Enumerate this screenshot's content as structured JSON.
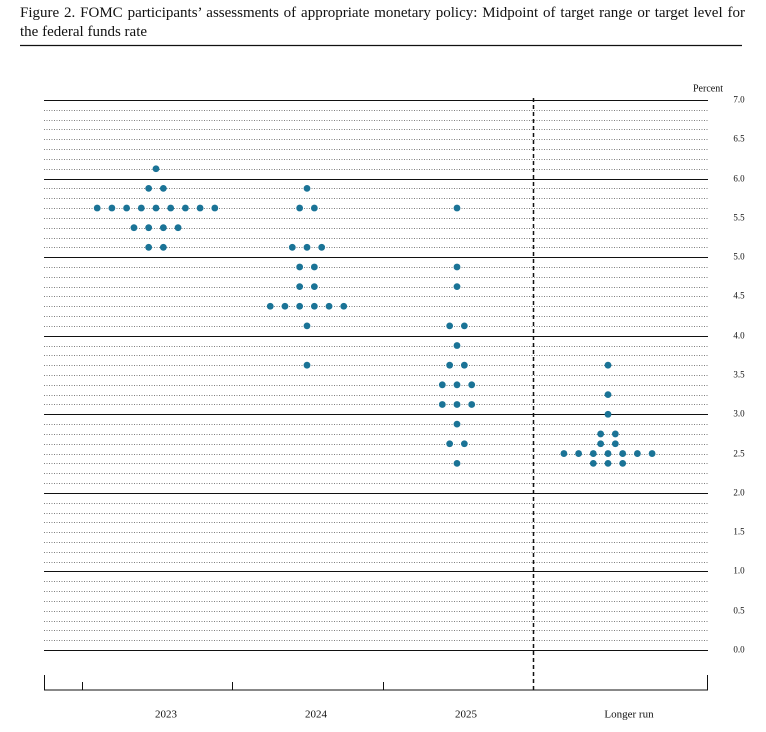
{
  "chart_data": {
    "type": "dot",
    "title": "Figure 2.  FOMC participants’ assessments of appropriate monetary policy: Midpoint of target range or target level for the federal funds rate",
    "y_label": "Percent",
    "categories": [
      "2023",
      "2024",
      "2025",
      "Longer run"
    ],
    "values": [
      [
        6.125,
        5.875,
        5.875,
        5.625,
        5.625,
        5.625,
        5.625,
        5.625,
        5.625,
        5.625,
        5.625,
        5.625,
        5.375,
        5.375,
        5.375,
        5.375,
        5.125,
        5.125
      ],
      [
        5.875,
        5.625,
        5.625,
        5.125,
        5.125,
        5.125,
        4.875,
        4.875,
        4.625,
        4.625,
        4.375,
        4.375,
        4.375,
        4.375,
        4.375,
        4.375,
        4.125,
        3.625
      ],
      [
        5.625,
        4.875,
        4.625,
        4.125,
        4.125,
        3.875,
        3.625,
        3.625,
        3.375,
        3.375,
        3.375,
        3.125,
        3.125,
        3.125,
        2.875,
        2.625,
        2.625,
        2.375
      ],
      [
        3.625,
        3.25,
        3.0,
        2.75,
        2.75,
        2.625,
        2.625,
        2.5,
        2.5,
        2.5,
        2.5,
        2.5,
        2.5,
        2.5,
        2.375,
        2.375,
        2.375
      ]
    ],
    "color": "#1a7396",
    "ylim": [
      0,
      7
    ],
    "yticks": [
      {
        "value": 0,
        "label": "0.0"
      },
      0.5,
      {
        "value": 1,
        "label": "1.0"
      },
      1.5,
      {
        "value": 2,
        "label": "2.0"
      },
      2.5,
      {
        "value": 3,
        "label": "3.0"
      },
      3.5,
      {
        "value": 4,
        "label": "4.0"
      },
      4.5,
      {
        "value": 5,
        "label": "5.0"
      },
      5.5,
      {
        "value": 6,
        "label": "6.0"
      },
      6.5,
      {
        "value": 7,
        "label": "7.0"
      }
    ],
    "grid": true
  }
}
